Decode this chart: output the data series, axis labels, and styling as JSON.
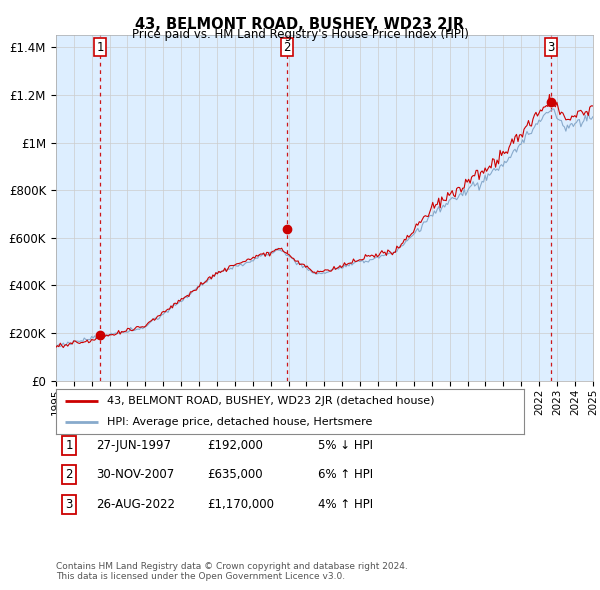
{
  "title": "43, BELMONT ROAD, BUSHEY, WD23 2JR",
  "subtitle": "Price paid vs. HM Land Registry's House Price Index (HPI)",
  "ylabel_ticks": [
    "£0",
    "£200K",
    "£400K",
    "£600K",
    "£800K",
    "£1M",
    "£1.2M",
    "£1.4M"
  ],
  "ytick_values": [
    0,
    200000,
    400000,
    600000,
    800000,
    1000000,
    1200000,
    1400000
  ],
  "ylim": [
    0,
    1450000
  ],
  "sale_dates_float": [
    1997.49,
    2007.92,
    2022.65
  ],
  "sale_prices": [
    192000,
    635000,
    1170000
  ],
  "sale_labels": [
    "1",
    "2",
    "3"
  ],
  "legend_property": "43, BELMONT ROAD, BUSHEY, WD23 2JR (detached house)",
  "legend_hpi": "HPI: Average price, detached house, Hertsmere",
  "table_rows": [
    [
      "1",
      "27-JUN-1997",
      "£192,000",
      "5% ↓ HPI"
    ],
    [
      "2",
      "30-NOV-2007",
      "£635,000",
      "6% ↑ HPI"
    ],
    [
      "3",
      "26-AUG-2022",
      "£1,170,000",
      "4% ↑ HPI"
    ]
  ],
  "footnote1": "Contains HM Land Registry data © Crown copyright and database right 2024.",
  "footnote2": "This data is licensed under the Open Government Licence v3.0.",
  "property_line_color": "#cc0000",
  "hpi_line_color": "#88aacc",
  "dashed_line_color": "#cc0000",
  "grid_color": "#cccccc",
  "chart_bg_color": "#ddeeff",
  "background_color": "#ffffff",
  "label_box_color": "#cc0000",
  "x_start_year": 1995,
  "x_end_year": 2025
}
